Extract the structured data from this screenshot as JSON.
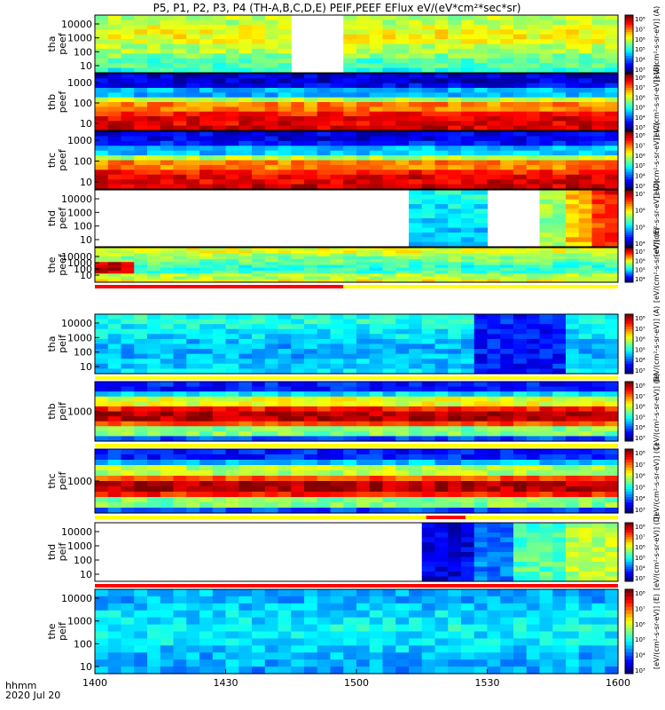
{
  "chart_data": {
    "type": "heatmap",
    "title": "P5, P1, P2, P3, P4 (TH-A,B,C,D,E) PEIF,PEEF EFlux eV/(eV*cm²*sec*sr)",
    "x_axis": {
      "label_top": "hhmm",
      "label_bottom": "2020 Jul 20",
      "range_hhmm": [
        "1400",
        "1600"
      ],
      "range_minutes": [
        0,
        120
      ],
      "ticks": [
        {
          "label": "1400",
          "minute": 0
        },
        {
          "label": "1430",
          "minute": 30
        },
        {
          "label": "1500",
          "minute": 60
        },
        {
          "label": "1530",
          "minute": 90
        },
        {
          "label": "1600",
          "minute": 120
        }
      ]
    },
    "colorbar_label": "[eV/(cm²-s-sr-eV)]",
    "panels": [
      {
        "probe": "tha",
        "product": "peef",
        "ylabel": [
          "tha",
          "peef"
        ],
        "yticks": [
          "10000",
          "1000",
          "100",
          "10"
        ],
        "cbar_ticks": [
          "10⁸",
          "10⁷",
          "10⁶",
          "10⁵",
          "10⁴",
          "10³"
        ],
        "cbar_text": "[eV/(cm²-s-sr-eV)] (A)",
        "profile": [
          0.55,
          0.6,
          0.62,
          0.6,
          0.55,
          0.5,
          0.45,
          0.4
        ],
        "gaps": [
          [
            46,
            58
          ]
        ],
        "vstripes": [],
        "bands": []
      },
      {
        "probe": "thb",
        "product": "peef",
        "ylabel": [
          "thb",
          "peef"
        ],
        "yticks": [
          "1000",
          "100",
          "10"
        ],
        "cbar_ticks": [
          "10⁸",
          "10⁷",
          "10⁶",
          "10⁵",
          "10⁴",
          "10³"
        ],
        "cbar_text": "[eV/(cm²-s-sr-eV)] (B)",
        "profile": [
          0.08,
          0.12,
          0.3,
          0.55,
          0.75,
          0.85,
          0.9,
          0.92
        ],
        "gaps": [],
        "vstripes": [],
        "bands": []
      },
      {
        "probe": "thc",
        "product": "peef",
        "ylabel": [
          "thc",
          "peef"
        ],
        "yticks": [
          "1000",
          "100",
          "10"
        ],
        "cbar_ticks": [
          "10⁸",
          "10⁷",
          "10⁶",
          "10⁵",
          "10⁴",
          "10³"
        ],
        "cbar_text": "[eV/(cm²-s-sr-eV)] (C)",
        "profile": [
          0.1,
          0.15,
          0.32,
          0.55,
          0.75,
          0.85,
          0.9,
          0.92
        ],
        "gaps": [],
        "vstripes": [],
        "bands": []
      },
      {
        "probe": "thd",
        "product": "peef",
        "ylabel": [
          "thd",
          "peef"
        ],
        "yticks": [
          "10000",
          "1000",
          "100",
          "10"
        ],
        "cbar_ticks": [
          "10⁷",
          "10⁶",
          "10⁵",
          "10⁴"
        ],
        "cbar_text": "[eV/(cm²-s-sr-eV)] (D)",
        "profile": [
          0.4,
          0.38,
          0.36,
          0.35,
          0.34,
          0.33,
          0.33,
          0.32
        ],
        "gaps": [
          [
            0,
            71
          ],
          [
            91,
            101
          ]
        ],
        "vstripes": [
          {
            "from": 101,
            "to": 108,
            "level": 0.55
          },
          {
            "from": 108,
            "to": 113,
            "level": 0.72
          },
          {
            "from": 113,
            "to": 117,
            "level": 0.85
          },
          {
            "from": 117,
            "to": 120,
            "level": 0.9
          }
        ],
        "bands": []
      },
      {
        "probe": "the",
        "product": "peef",
        "ylabel": [
          "the",
          "peef"
        ],
        "yticks": [
          "10000",
          "1000",
          "100",
          "10"
        ],
        "cbar_ticks": [
          "10⁷",
          "10⁶",
          "10⁵",
          "10⁴"
        ],
        "cbar_text": "[eV/(cm²-s-sr-eV)] (E)",
        "profile": [
          0.6,
          0.55,
          0.5,
          0.45,
          0.42,
          0.45,
          0.55,
          0.62
        ],
        "gaps": [],
        "vstripes": [],
        "bands": [
          {
            "from": 0,
            "to": 9,
            "rowFrom": 5,
            "rowTo": 8,
            "level": 0.92
          }
        ]
      },
      {
        "probe": "tha",
        "product": "peif",
        "ylabel": [
          "tha",
          "peif"
        ],
        "yticks": [
          "10000",
          "1000",
          "100",
          "10"
        ],
        "cbar_ticks": [
          "10⁸",
          "10⁷",
          "10⁶",
          "10⁵",
          "10⁴",
          "10³"
        ],
        "cbar_text": "[eV/(cm²-s-sr-eV)] (A)",
        "profile": [
          0.4,
          0.38,
          0.35,
          0.32,
          0.3,
          0.3,
          0.32,
          0.35
        ],
        "gaps": [],
        "vstripes": [
          {
            "from": 88,
            "to": 108,
            "level": 0.18
          }
        ],
        "bands": []
      },
      {
        "probe": "thb",
        "product": "peif",
        "ylabel": [
          "thb",
          "peif"
        ],
        "yticks": [
          "1000"
        ],
        "cbar_ticks": [
          "10⁸",
          "10⁷",
          "10⁶",
          "10⁵",
          "10⁴",
          "10³"
        ],
        "cbar_text": "[eV/(cm²-s-sr-eV)] (B)",
        "profile": [
          0.15,
          0.35,
          0.6,
          0.85,
          0.95,
          0.8,
          0.5,
          0.2
        ],
        "gaps": [],
        "vstripes": [],
        "bands": []
      },
      {
        "probe": "thc",
        "product": "peif",
        "ylabel": [
          "thc",
          "peif"
        ],
        "yticks": [
          "1000"
        ],
        "cbar_ticks": [
          "10⁸",
          "10⁷",
          "10⁶",
          "10⁵",
          "10⁴",
          "10³"
        ],
        "cbar_text": "[eV/(cm²-s-sr-eV)] (C)",
        "profile": [
          0.15,
          0.3,
          0.55,
          0.8,
          0.95,
          0.85,
          0.5,
          0.2
        ],
        "gaps": [],
        "vstripes": [],
        "bands": []
      },
      {
        "probe": "thd",
        "product": "peif",
        "ylabel": [
          "thd",
          "peif"
        ],
        "yticks": [
          "10000",
          "1000",
          "100",
          "10"
        ],
        "cbar_ticks": [
          "10⁸",
          "10⁷",
          "10⁶",
          "10⁵",
          "10⁴",
          "10³"
        ],
        "cbar_text": "[eV/(cm²-s-sr-eV)] (D)",
        "profile": [
          0.25,
          0.25,
          0.25,
          0.25,
          0.25,
          0.25,
          0.25,
          0.25
        ],
        "gaps": [
          [
            0,
            76
          ]
        ],
        "vstripes": [
          {
            "from": 76,
            "to": 86,
            "level": 0.15
          },
          {
            "from": 86,
            "to": 96,
            "level": 0.3
          },
          {
            "from": 96,
            "to": 108,
            "level": 0.5
          },
          {
            "from": 108,
            "to": 120,
            "level": 0.6
          }
        ],
        "bands": []
      },
      {
        "probe": "the",
        "product": "peif",
        "ylabel": [
          "the",
          "peif"
        ],
        "yticks": [
          "10000",
          "1000",
          "100",
          "10"
        ],
        "cbar_ticks": [
          "10⁸",
          "10⁷",
          "10⁶",
          "10⁵",
          "10⁴",
          "10³"
        ],
        "cbar_text": "[eV/(cm²-s-sr-eV)] (E)",
        "profile": [
          0.3,
          0.32,
          0.35,
          0.38,
          0.36,
          0.33,
          0.3,
          0.28
        ],
        "gaps": [],
        "vstripes": [],
        "bands": []
      }
    ],
    "mode_bars": [
      {
        "after_panel": 0,
        "segments": []
      },
      {
        "after_panel": 4,
        "segments": [
          {
            "from": 0,
            "to": 57,
            "color": "#ff0000"
          },
          {
            "from": 57,
            "to": 120,
            "color": "#ffff00"
          }
        ]
      },
      {
        "after_panel": 5,
        "segments": [
          {
            "from": 0,
            "to": 120,
            "color": "#ffff00"
          }
        ]
      },
      {
        "after_panel": 6,
        "segments": [
          {
            "from": 0,
            "to": 120,
            "color": "#ffff00"
          }
        ]
      },
      {
        "after_panel": 7,
        "segments": [
          {
            "from": 0,
            "to": 120,
            "color": "#ffff00"
          },
          {
            "from": 76,
            "to": 85,
            "color": "#ff0000"
          }
        ]
      },
      {
        "after_panel": 8,
        "segments": [
          {
            "from": 0,
            "to": 120,
            "color": "#ff0000"
          }
        ]
      }
    ]
  }
}
